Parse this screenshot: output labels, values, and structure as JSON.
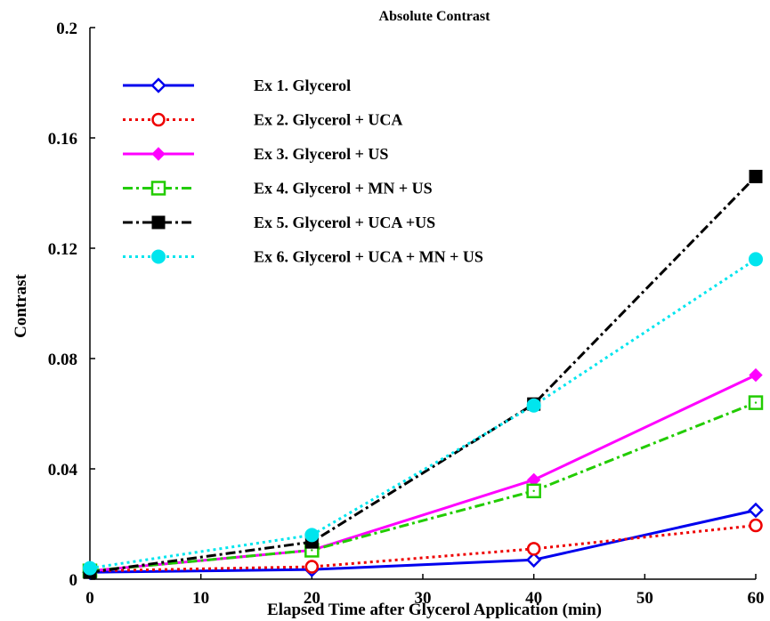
{
  "chart_data": {
    "type": "line",
    "title": "Absolute Contrast",
    "xlabel": "Elapsed Time after Glycerol Application (min)",
    "ylabel": "Contrast",
    "xlim": [
      0,
      60
    ],
    "ylim": [
      0,
      0.2
    ],
    "xticks": [
      "0",
      "10",
      "20",
      "30",
      "40",
      "50",
      "60"
    ],
    "yticks": [
      "0",
      "0.04",
      "0.08",
      "0.12",
      "0.16",
      "0.2"
    ],
    "grid": false,
    "legend_position": "top-left",
    "x": [
      0,
      20,
      40,
      60
    ],
    "series": [
      {
        "name": "Ex 1. Glycerol",
        "values": [
          0.0025,
          0.0035,
          0.007,
          0.025
        ],
        "color": "#0000ee",
        "dash": "solid",
        "marker": "diamond-open"
      },
      {
        "name": "Ex 2. Glycerol + UCA",
        "values": [
          0.003,
          0.0045,
          0.011,
          0.0195
        ],
        "color": "#ee0000",
        "dash": "dotted",
        "marker": "circle-open"
      },
      {
        "name": "Ex 3. Glycerol + US",
        "values": [
          0.003,
          0.0105,
          0.036,
          0.074
        ],
        "color": "#ff00ff",
        "dash": "solid",
        "marker": "diamond-filled"
      },
      {
        "name": "Ex 4. Glycerol + MN + US",
        "values": [
          0.003,
          0.0105,
          0.032,
          0.064
        ],
        "color": "#22cc00",
        "dash": "dashdot",
        "marker": "square-open"
      },
      {
        "name": "Ex 5. Glycerol + UCA +US",
        "values": [
          0.0025,
          0.0135,
          0.0635,
          0.146
        ],
        "color": "#000000",
        "dash": "dashdot",
        "marker": "square-filled"
      },
      {
        "name": "Ex 6. Glycerol + UCA + MN + US",
        "values": [
          0.004,
          0.016,
          0.063,
          0.116
        ],
        "color": "#00e5ee",
        "dash": "dotted",
        "marker": "circle-filled"
      }
    ]
  }
}
